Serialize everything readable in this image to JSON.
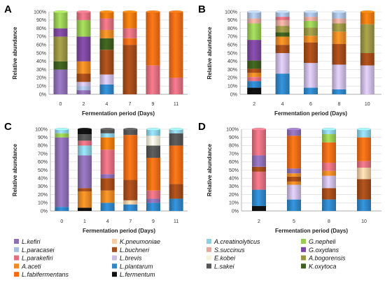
{
  "colors": {
    "L.kefiri": "#8e6fb4",
    "L.paracasei": "#a9bfe0",
    "L.parakefiri": "#e07080",
    "A.aceti": "#f08a24",
    "L.fabifermentans": "#f46d16",
    "K.pneumoniae": "#f9cda4",
    "L.buchneri": "#a44c1a",
    "L.brevis": "#cdbde3",
    "L.plantarum": "#2f86c8",
    "L.fermentum": "#111111",
    "A.creatinolyticus": "#8dd0e4",
    "S.succinus": "#e3a89c",
    "E.kobei": "#f8f2da",
    "L.sakei": "#555555",
    "G.nepheli": "#99cc55",
    "G.oxydans": "#7d479e",
    "A.bogorensis": "#9a9544",
    "K.oxytoca": "#3d5f1f",
    "A.aceti_top": "#f27a10"
  },
  "legend": [
    [
      "L.kefiri",
      "K.pneumoniae",
      "A.creatinolyticus",
      "G.nepheli"
    ],
    [
      "L.paracasei",
      "L.buchneri",
      "S.succinus",
      "G.oxydans"
    ],
    [
      "L.parakefiri",
      "L.brevis",
      "E.kobei",
      "A.bogorensis"
    ],
    [
      "A.aceti",
      "L.plantarum",
      "L.sakei",
      "K.oxytoca"
    ],
    [
      "L.fabifermentans",
      "L.fermentum",
      "",
      ""
    ]
  ],
  "chart_data": [
    {
      "panel": "A",
      "type": "bar",
      "stacked": true,
      "xlabel": "Fermentation period (Days)",
      "ylabel": "Relative abundance",
      "ylim": [
        0,
        100
      ],
      "yticks": [
        "0%",
        "10%",
        "20%",
        "30%",
        "40%",
        "50%",
        "60%",
        "70%",
        "80%",
        "90%",
        "100%"
      ],
      "categories": [
        "0",
        "2",
        "4",
        "7",
        "9",
        "11"
      ],
      "bars": [
        [
          [
            "L.kefiri",
            30
          ],
          [
            "K.oxytoca",
            10
          ],
          [
            "A.bogorensis",
            30
          ],
          [
            "G.oxydans",
            10
          ],
          [
            "G.nepheli",
            20
          ]
        ],
        [
          [
            "L.kefiri",
            5
          ],
          [
            "L.paracasei",
            5
          ],
          [
            "L.brevis",
            5
          ],
          [
            "L.buchneri",
            10
          ],
          [
            "A.aceti",
            15
          ],
          [
            "G.oxydans",
            30
          ],
          [
            "G.nepheli",
            20
          ],
          [
            "L.parakefiri",
            10
          ]
        ],
        [
          [
            "L.plantarum",
            12
          ],
          [
            "L.brevis",
            12
          ],
          [
            "L.buchneri",
            30
          ],
          [
            "K.oxytoca",
            14
          ],
          [
            "A.aceti",
            10
          ],
          [
            "L.parakefiri",
            14
          ],
          [
            "A.aceti_top",
            8
          ]
        ],
        [
          [
            "L.buchneri",
            60
          ],
          [
            "L.fabifermentans",
            8
          ],
          [
            "L.parakefiri",
            12
          ],
          [
            "A.aceti_top",
            20
          ]
        ],
        [
          [
            "L.parakefiri",
            35
          ],
          [
            "L.fabifermentans",
            65
          ]
        ],
        [
          [
            "L.parakefiri",
            20
          ],
          [
            "L.fabifermentans",
            80
          ]
        ]
      ]
    },
    {
      "panel": "B",
      "type": "bar",
      "stacked": true,
      "xlabel": "Fermentation period (Days)",
      "ylabel": "Relative abundance",
      "ylim": [
        0,
        100
      ],
      "yticks": [
        "0%",
        "10%",
        "20%",
        "30%",
        "40%",
        "50%",
        "60%",
        "70%",
        "80%",
        "90%",
        "100%"
      ],
      "categories": [
        "2",
        "4",
        "6",
        "8",
        "10"
      ],
      "bars": [
        [
          [
            "L.fermentum",
            8
          ],
          [
            "L.plantarum",
            8
          ],
          [
            "L.parakefiri",
            5
          ],
          [
            "A.aceti",
            5
          ],
          [
            "L.buchneri",
            5
          ],
          [
            "K.oxytoca",
            10
          ],
          [
            "G.oxydans",
            25
          ],
          [
            "G.nepheli",
            20
          ],
          [
            "S.succinus",
            6
          ],
          [
            "L.paracasei",
            8
          ]
        ],
        [
          [
            "L.plantarum",
            25
          ],
          [
            "L.brevis",
            25
          ],
          [
            "L.buchneri",
            10
          ],
          [
            "A.aceti",
            10
          ],
          [
            "K.oxytoca",
            5
          ],
          [
            "A.bogorensis",
            8
          ],
          [
            "S.succinus",
            7
          ],
          [
            "L.parakefiri",
            4
          ],
          [
            "L.paracasei",
            6
          ]
        ],
        [
          [
            "L.plantarum",
            8
          ],
          [
            "L.brevis",
            30
          ],
          [
            "L.buchneri",
            25
          ],
          [
            "A.aceti",
            8
          ],
          [
            "A.bogorensis",
            10
          ],
          [
            "G.nepheli",
            8
          ],
          [
            "S.succinus",
            5
          ],
          [
            "L.paracasei",
            6
          ]
        ],
        [
          [
            "L.plantarum",
            6
          ],
          [
            "L.brevis",
            30
          ],
          [
            "L.buchneri",
            25
          ],
          [
            "A.aceti",
            15
          ],
          [
            "A.bogorensis",
            10
          ],
          [
            "S.succinus",
            6
          ],
          [
            "L.paracasei",
            8
          ]
        ],
        [
          [
            "L.brevis",
            35
          ],
          [
            "L.buchneri",
            15
          ],
          [
            "A.bogorensis",
            35
          ],
          [
            "A.aceti_top",
            15
          ]
        ]
      ]
    },
    {
      "panel": "C",
      "type": "bar",
      "stacked": true,
      "xlabel": "Fermentation period (Days)",
      "ylabel": "Relative abundance",
      "ylim": [
        0,
        100
      ],
      "yticks": [
        "0%",
        "10%",
        "20%",
        "30%",
        "40%",
        "50%",
        "60%",
        "70%",
        "80%",
        "90%",
        "100%"
      ],
      "categories": [
        "0",
        "1",
        "4",
        "7",
        "9",
        "11"
      ],
      "bars": [
        [
          [
            "L.plantarum",
            5
          ],
          [
            "L.kefiri",
            85
          ],
          [
            "G.nepheli",
            5
          ],
          [
            "A.creatinolyticus",
            5
          ]
        ],
        [
          [
            "L.fermentum",
            4
          ],
          [
            "A.aceti",
            20
          ],
          [
            "L.buchneri",
            4
          ],
          [
            "L.kefiri",
            40
          ],
          [
            "A.creatinolyticus",
            12
          ],
          [
            "L.parakefiri",
            6
          ],
          [
            "L.sakei",
            8
          ],
          [
            "L.fermentum",
            6
          ]
        ],
        [
          [
            "L.plantarum",
            10
          ],
          [
            "A.aceti",
            15
          ],
          [
            "L.buchneri",
            15
          ],
          [
            "L.kefiri",
            5
          ],
          [
            "L.parakefiri",
            30
          ],
          [
            "A.aceti_top",
            15
          ],
          [
            "A.creatinolyticus",
            5
          ],
          [
            "L.sakei",
            5
          ]
        ],
        [
          [
            "L.plantarum",
            8
          ],
          [
            "K.pneumoniae",
            5
          ],
          [
            "L.buchneri",
            25
          ],
          [
            "L.fabifermentans",
            55
          ],
          [
            "L.sakei",
            7
          ]
        ],
        [
          [
            "L.plantarum",
            10
          ],
          [
            "L.kefiri",
            5
          ],
          [
            "L.parakefiri",
            10
          ],
          [
            "L.fabifermentans",
            40
          ],
          [
            "L.sakei",
            15
          ],
          [
            "E.kobei",
            12
          ],
          [
            "A.creatinolyticus",
            8
          ]
        ],
        [
          [
            "L.plantarum",
            15
          ],
          [
            "L.buchneri",
            18
          ],
          [
            "L.fabifermentans",
            47
          ],
          [
            "L.sakei",
            15
          ],
          [
            "A.creatinolyticus",
            5
          ]
        ]
      ]
    },
    {
      "panel": "D",
      "type": "bar",
      "stacked": true,
      "xlabel": "Fermentation period (Days)",
      "ylabel": "Relative abundance",
      "ylim": [
        0,
        100
      ],
      "yticks": [
        "0%",
        "10%",
        "20%",
        "30%",
        "40%",
        "50%",
        "60%",
        "70%",
        "80%",
        "90%",
        "100%"
      ],
      "categories": [
        "2",
        "5",
        "8",
        "10"
      ],
      "bars": [
        [
          [
            "L.fermentum",
            6
          ],
          [
            "L.plantarum",
            20
          ],
          [
            "L.parakefiri",
            22
          ],
          [
            "L.buchneri",
            6
          ],
          [
            "L.kefiri",
            14
          ],
          [
            "L.parakefiri",
            32
          ]
        ],
        [
          [
            "L.plantarum",
            14
          ],
          [
            "L.brevis",
            18
          ],
          [
            "A.aceti",
            4
          ],
          [
            "L.buchneri",
            6
          ],
          [
            "A.aceti",
            4
          ],
          [
            "L.kefiri",
            6
          ],
          [
            "L.fabifermentans",
            40
          ],
          [
            "L.kefiri",
            8
          ]
        ],
        [
          [
            "L.plantarum",
            14
          ],
          [
            "L.buchneri",
            14
          ],
          [
            "L.brevis",
            15
          ],
          [
            "A.aceti",
            6
          ],
          [
            "L.parakefiri",
            10
          ],
          [
            "L.fabifermentans",
            25
          ],
          [
            "G.nepheli",
            10
          ],
          [
            "A.creatinolyticus",
            6
          ]
        ],
        [
          [
            "L.plantarum",
            14
          ],
          [
            "L.buchneri",
            25
          ],
          [
            "K.pneumoniae",
            14
          ],
          [
            "L.parakefiri",
            8
          ],
          [
            "L.fabifermentans",
            29
          ],
          [
            "A.creatinolyticus",
            10
          ]
        ]
      ]
    }
  ]
}
